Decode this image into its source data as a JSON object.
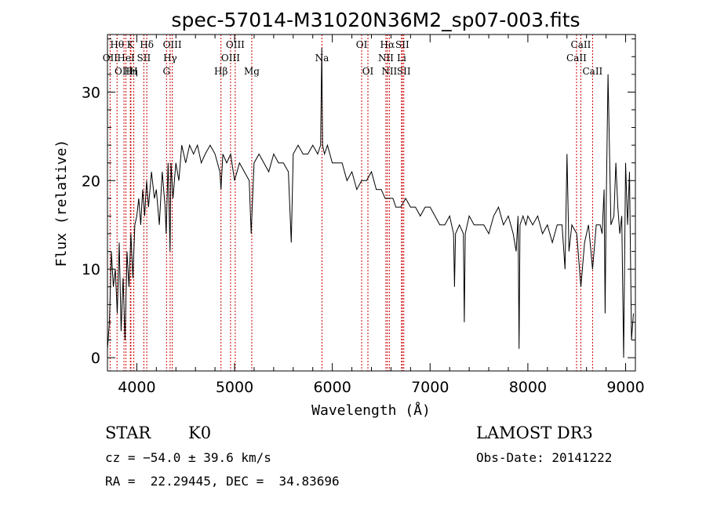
{
  "chart_data": {
    "type": "line",
    "title": "spec-57014-M31020N36M2_sp07-003.fits",
    "xlabel": "Wavelength (Å)",
    "ylabel": "Flux (relative)",
    "xlim": [
      3700,
      9100
    ],
    "ylim": [
      -1.5,
      36.5
    ],
    "xticks": [
      4000,
      5000,
      6000,
      7000,
      8000,
      9000
    ],
    "yticks": [
      0,
      10,
      20,
      30
    ],
    "series": [
      {
        "name": "flux",
        "x": [
          3700,
          3720,
          3740,
          3760,
          3780,
          3800,
          3820,
          3840,
          3860,
          3880,
          3900,
          3920,
          3940,
          3960,
          3980,
          4000,
          4020,
          4040,
          4060,
          4080,
          4100,
          4120,
          4150,
          4180,
          4200,
          4230,
          4260,
          4290,
          4300,
          4320,
          4340,
          4350,
          4370,
          4400,
          4430,
          4460,
          4500,
          4540,
          4580,
          4620,
          4660,
          4700,
          4750,
          4800,
          4850,
          4861,
          4880,
          4920,
          4960,
          5000,
          5050,
          5100,
          5150,
          5170,
          5184,
          5200,
          5250,
          5300,
          5350,
          5400,
          5450,
          5500,
          5550,
          5580,
          5600,
          5650,
          5700,
          5750,
          5800,
          5850,
          5880,
          5892,
          5900,
          5920,
          5950,
          6000,
          6050,
          6100,
          6150,
          6200,
          6250,
          6300,
          6350,
          6400,
          6450,
          6500,
          6540,
          6563,
          6580,
          6620,
          6650,
          6700,
          6750,
          6800,
          6850,
          6900,
          6950,
          7000,
          7050,
          7100,
          7150,
          7200,
          7240,
          7250,
          7260,
          7300,
          7340,
          7350,
          7360,
          7400,
          7450,
          7500,
          7550,
          7600,
          7650,
          7700,
          7750,
          7800,
          7850,
          7880,
          7900,
          7910,
          7920,
          7950,
          7980,
          8000,
          8050,
          8100,
          8150,
          8200,
          8250,
          8300,
          8350,
          8380,
          8400,
          8420,
          8450,
          8500,
          8542,
          8580,
          8620,
          8662,
          8700,
          8740,
          8760,
          8780,
          8790,
          8800,
          8820,
          8850,
          8880,
          8900,
          8920,
          8940,
          8960,
          8980,
          9000,
          9020,
          9040,
          9060,
          9080
        ],
        "y": [
          1,
          4,
          12,
          8,
          10,
          5,
          13,
          3,
          9,
          2,
          12,
          8,
          14,
          9,
          15,
          16,
          18,
          15,
          19,
          16,
          20,
          17,
          21,
          18,
          19,
          15,
          21,
          17,
          14,
          22,
          12,
          22,
          18,
          22,
          20,
          24,
          22,
          24,
          23,
          24,
          22,
          23,
          24,
          23,
          21,
          19,
          23,
          22,
          23,
          20,
          22,
          21,
          20,
          14,
          18,
          22,
          23,
          22,
          21,
          23,
          22,
          22,
          21,
          13,
          23,
          24,
          23,
          23,
          24,
          23,
          24,
          35,
          24,
          23,
          24,
          22,
          22,
          22,
          20,
          21,
          19,
          20,
          20,
          21,
          19,
          19,
          18,
          18,
          18,
          18,
          17,
          17,
          18,
          17,
          17,
          16,
          17,
          17,
          16,
          15,
          15,
          16,
          14,
          8,
          14,
          15,
          14,
          4,
          14,
          16,
          15,
          15,
          15,
          14,
          16,
          17,
          15,
          16,
          14,
          12,
          16,
          1,
          15,
          16,
          15,
          16,
          15,
          16,
          14,
          15,
          13,
          15,
          15,
          10,
          23,
          12,
          15,
          14,
          8,
          13,
          15,
          10,
          15,
          15,
          14,
          19,
          5,
          16,
          32,
          15,
          16,
          22,
          17,
          14,
          16,
          0,
          22,
          15,
          21,
          2,
          5
        ]
      }
    ],
    "lines": [
      {
        "name": "OII",
        "wl": 3727,
        "row": 1
      },
      {
        "name": "Hθ",
        "wl": 3798,
        "row": 0
      },
      {
        "name": "OIII",
        "wl": 3869,
        "row": 2
      },
      {
        "name": "HeI",
        "wl": 3889,
        "row": 1
      },
      {
        "name": "K",
        "wl": 3934,
        "row": 0
      },
      {
        "name": "Hη",
        "wl": 3940,
        "row": 2
      },
      {
        "name": "H",
        "wl": 3969,
        "row": 2
      },
      {
        "name": "SII",
        "wl": 4072,
        "row": 1
      },
      {
        "name": "Hδ",
        "wl": 4102,
        "row": 0
      },
      {
        "name": "G",
        "wl": 4304,
        "row": 2
      },
      {
        "name": "Hγ",
        "wl": 4341,
        "row": 1
      },
      {
        "name": "OIII",
        "wl": 4363,
        "row": 0
      },
      {
        "name": "Hβ",
        "wl": 4861,
        "row": 2
      },
      {
        "name": "OIII",
        "wl": 4959,
        "row": 1
      },
      {
        "name": "OIII",
        "wl": 5007,
        "row": 0
      },
      {
        "name": "Mg",
        "wl": 5176,
        "row": 2
      },
      {
        "name": "Na",
        "wl": 5894,
        "row": 1
      },
      {
        "name": "OI",
        "wl": 6300,
        "row": 0
      },
      {
        "name": "OI",
        "wl": 6364,
        "row": 2
      },
      {
        "name": "NII",
        "wl": 6548,
        "row": 1
      },
      {
        "name": "Hα",
        "wl": 6563,
        "row": 0
      },
      {
        "name": "NII",
        "wl": 6583,
        "row": 2
      },
      {
        "name": "Li",
        "wl": 6708,
        "row": 1
      },
      {
        "name": "SII",
        "wl": 6716,
        "row": 0
      },
      {
        "name": "SII",
        "wl": 6731,
        "row": 2
      },
      {
        "name": "CaII",
        "wl": 8498,
        "row": 1
      },
      {
        "name": "CaII",
        "wl": 8542,
        "row": 0
      },
      {
        "name": "CaII",
        "wl": 8662,
        "row": 2
      }
    ]
  },
  "info": {
    "class": "STAR",
    "subclass": "K0",
    "survey": "LAMOST DR3",
    "cz": "cz = −54.0 ± 39.6 km/s",
    "obs_date": "Obs-Date: 20141222",
    "coords": "RA =  22.29445, DEC =  34.83696"
  },
  "colors": {
    "line_marker": "#cc0000",
    "spectrum": "#000000",
    "axes": "#000000"
  }
}
